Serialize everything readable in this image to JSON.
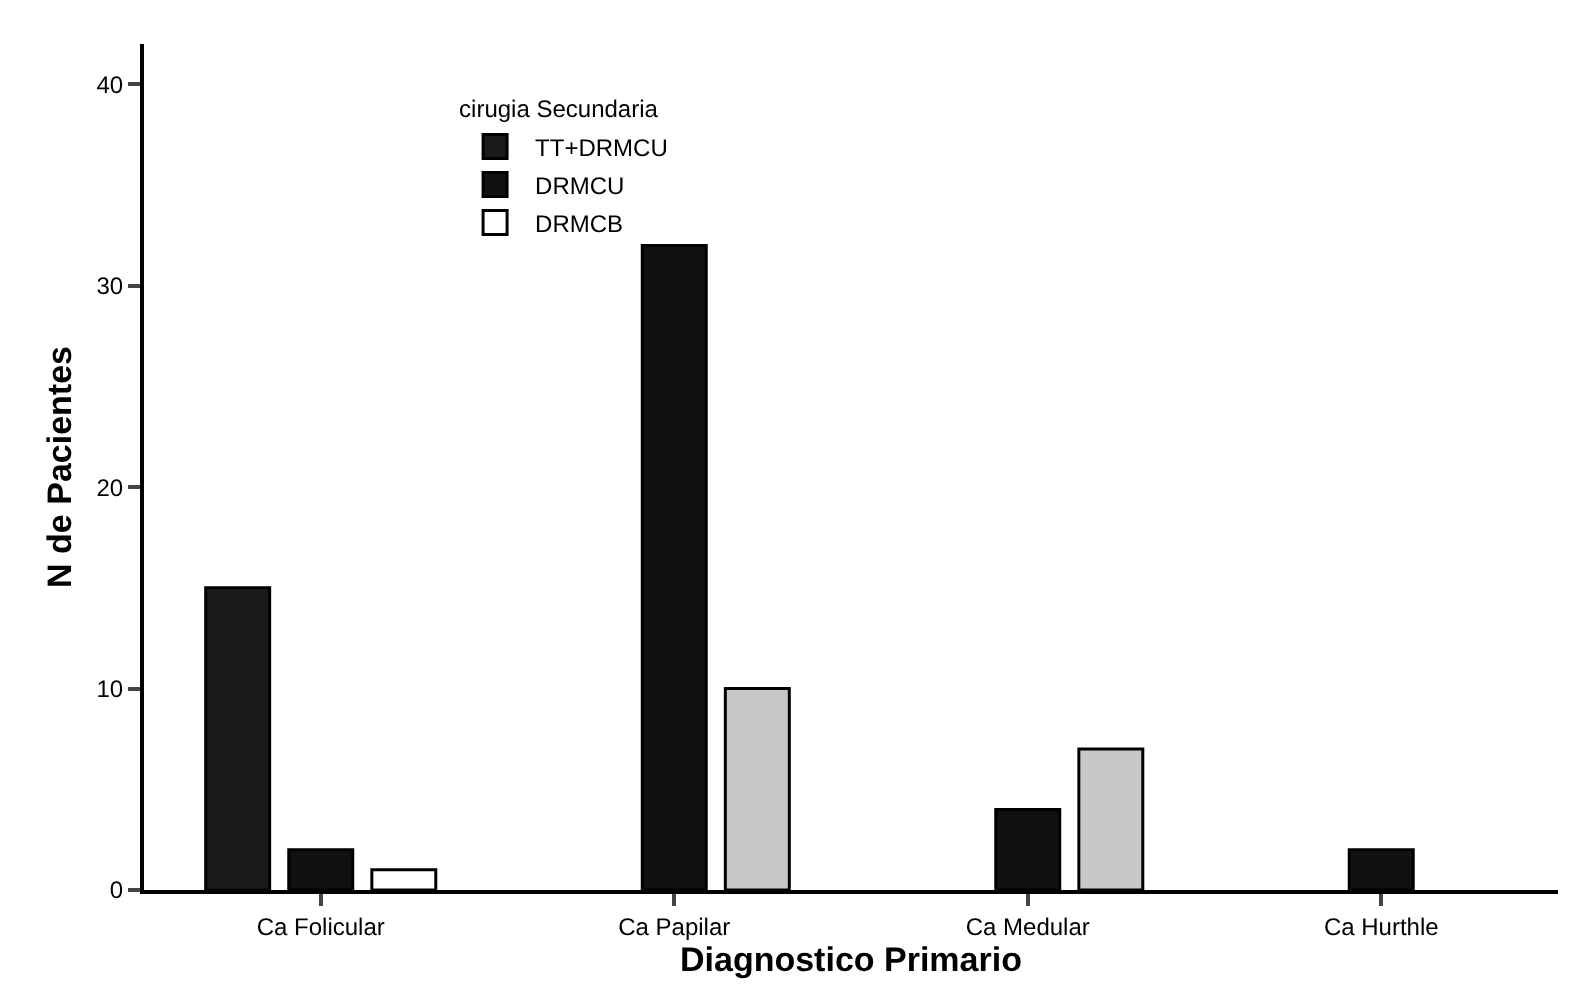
{
  "chart_data": {
    "type": "bar",
    "xlabel": "Diagnostico Primario",
    "ylabel": "N de Pacientes",
    "legend_title": "cirugia Secundaria",
    "categories": [
      "Ca Folicular",
      "Ca Papilar",
      "Ca Medular",
      "Ca Hurthle"
    ],
    "series": [
      {
        "name": "TT+DRMCU",
        "color": "#1a1a1a",
        "values": [
          15,
          null,
          null,
          null
        ]
      },
      {
        "name": "DRMCU",
        "color": "#111111",
        "values": [
          2,
          32,
          4,
          2
        ]
      },
      {
        "name": "DRMCB",
        "color": "#ffffff",
        "colors": [
          "#ffffff",
          "#c8c8c8",
          "#c8c8c8",
          null
        ],
        "values": [
          1,
          10,
          7,
          null
        ]
      }
    ],
    "ylim": [
      0,
      42
    ],
    "yticks": [
      0,
      10,
      20,
      30,
      40
    ],
    "legend": "top left"
  }
}
